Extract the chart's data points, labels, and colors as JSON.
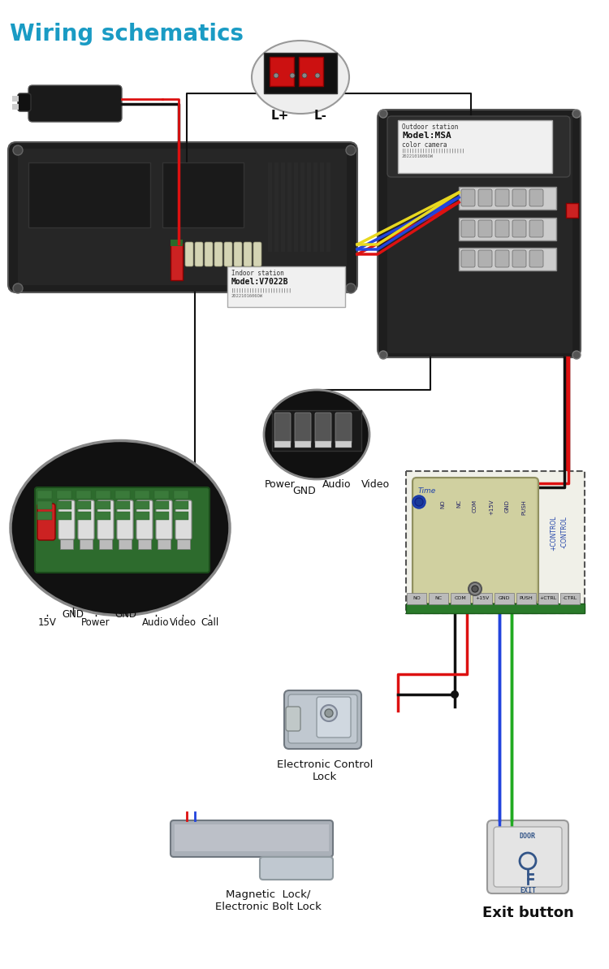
{
  "title": "Wiring schematics",
  "title_color": "#1a9bc4",
  "title_fontsize": 20,
  "title_weight": "bold",
  "bg_color": "#ffffff",
  "figsize": [
    7.5,
    11.93
  ],
  "dpi": 100,
  "wire_colors": {
    "red": "#dd1111",
    "black": "#111111",
    "yellow": "#e8d820",
    "blue": "#2244dd",
    "green": "#22aa22",
    "white": "#ffffff"
  },
  "ctrl_labels": [
    "NO",
    "NC",
    "COM",
    "+15V",
    "GND",
    "PUSH",
    "+CONTROL",
    "-CONTROL"
  ],
  "left_circle_labels": [
    "15V",
    "GND",
    "Power",
    "GND",
    "Audio",
    "Video",
    "Call"
  ],
  "bot_circle_labels": [
    "Power",
    "GND",
    "Audio",
    "Video"
  ],
  "elec_ctrl_lock": "Electronic Control\nLock",
  "mag_lock": "Magnetic  Lock/\nElectronic Bolt Lock",
  "exit_button": "Exit button",
  "L_plus": "L+",
  "L_minus": "L-"
}
